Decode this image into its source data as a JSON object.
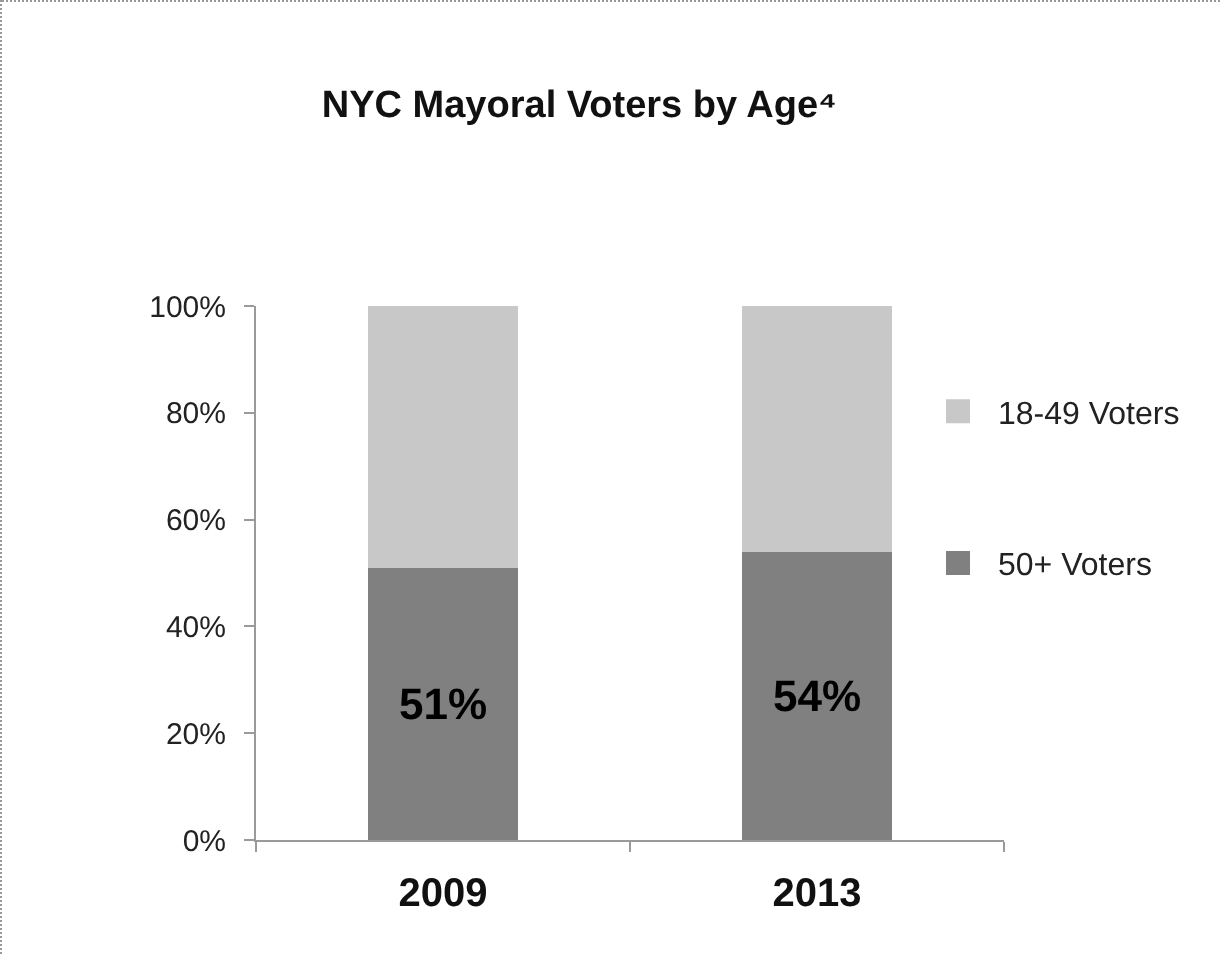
{
  "chart_data": {
    "type": "bar",
    "title": "NYC Mayoral Voters by Age⁴",
    "categories": [
      "2009",
      "2013"
    ],
    "series": [
      {
        "name": "50+ Voters",
        "color": "#808080",
        "values": [
          51,
          54
        ],
        "value_labels": [
          "51%",
          "54%"
        ]
      },
      {
        "name": "18-49 Voters",
        "color": "#c8c8c8",
        "values": [
          49,
          46
        ]
      }
    ],
    "stacked": true,
    "ylim": [
      0,
      100
    ],
    "yticks": [
      {
        "value": 0,
        "label": "0%"
      },
      {
        "value": 20,
        "label": "20%"
      },
      {
        "value": 40,
        "label": "40%"
      },
      {
        "value": 60,
        "label": "60%"
      },
      {
        "value": 80,
        "label": "80%"
      },
      {
        "value": 100,
        "label": "100%"
      }
    ],
    "grid": false,
    "legend": "right"
  }
}
